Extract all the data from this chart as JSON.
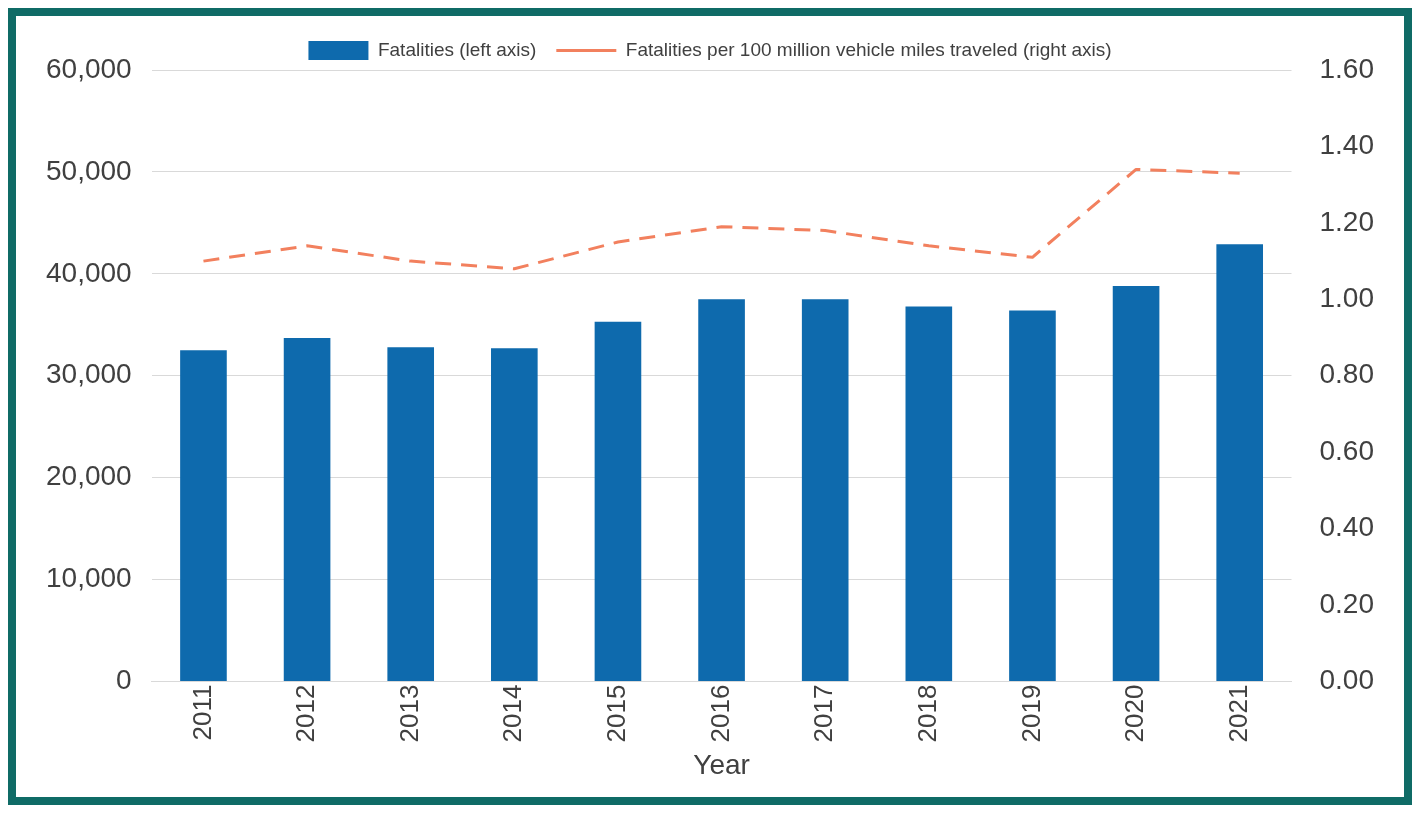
{
  "chart_data": {
    "type": "bar",
    "xlabel": "Year",
    "categories": [
      "2011",
      "2012",
      "2013",
      "2014",
      "2015",
      "2016",
      "2017",
      "2018",
      "2019",
      "2020",
      "2021"
    ],
    "series": [
      {
        "name": "Fatalities (left axis)",
        "color": "#0e6aad",
        "values": [
          32500,
          33700,
          32800,
          32700,
          35300,
          37500,
          37500,
          36800,
          36400,
          38800,
          42900
        ]
      },
      {
        "name": "Fatalities per 100 million vehicle miles traveled (right axis)",
        "type": "line",
        "axis": "y2",
        "color": "#f2805e",
        "line_style": "dashed",
        "values": [
          1.1,
          1.14,
          1.1,
          1.08,
          1.15,
          1.19,
          1.18,
          1.14,
          1.11,
          1.34,
          1.33
        ]
      }
    ],
    "ylim": [
      0,
      60000
    ],
    "yticks": [
      {
        "value": 0,
        "label": "0"
      },
      {
        "value": 10000,
        "label": "10,000"
      },
      {
        "value": 20000,
        "label": "20,000"
      },
      {
        "value": 30000,
        "label": "30,000"
      },
      {
        "value": 40000,
        "label": "40,000"
      },
      {
        "value": 50000,
        "label": "50,000"
      },
      {
        "value": 60000,
        "label": "60,000"
      }
    ],
    "y2lim": [
      0,
      1.6
    ],
    "y2ticks": [
      {
        "value": 0,
        "label": "0.00"
      },
      {
        "value": 0.2,
        "label": "0.20"
      },
      {
        "value": 0.4,
        "label": "0.40"
      },
      {
        "value": 0.6,
        "label": "0.60"
      },
      {
        "value": 0.8,
        "label": "0.80"
      },
      {
        "value": 1.0,
        "label": "1.00"
      },
      {
        "value": 1.2,
        "label": "1.20"
      },
      {
        "value": 1.4,
        "label": "1.40"
      },
      {
        "value": 1.6,
        "label": "1.60"
      }
    ],
    "grid": "y",
    "legend": "top"
  }
}
